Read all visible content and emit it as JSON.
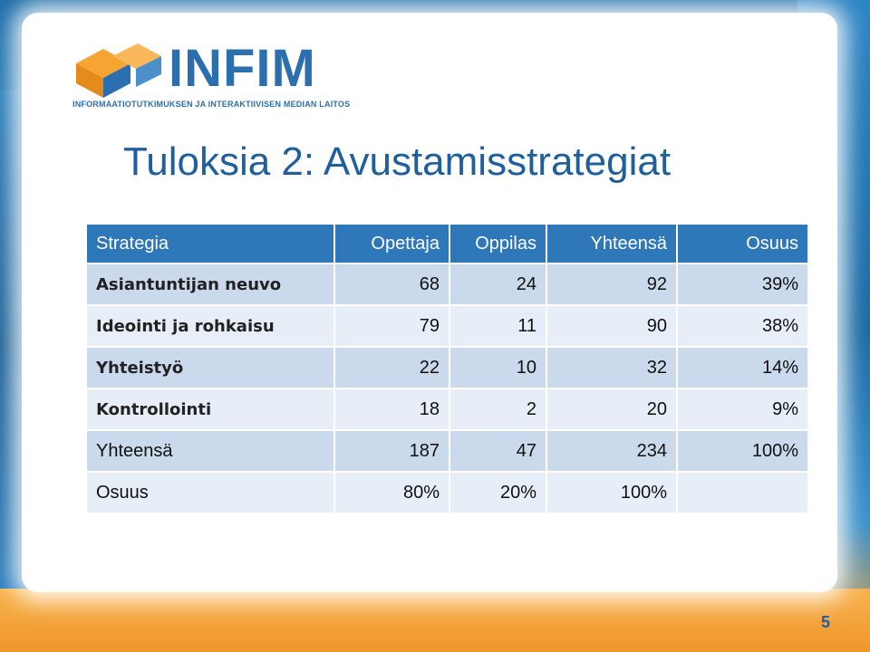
{
  "logo": {
    "name": "INFIM",
    "subtitle": "INFORMAATIOTUTKIMUKSEN JA INTERAKTIIVISEN MEDIAN LAITOS"
  },
  "slide": {
    "title": "Tuloksia 2: Avustamisstrategiat",
    "page_number": "5"
  },
  "table": {
    "headers": [
      "Strategia",
      "Opettaja",
      "Oppilas",
      "Yhteensä",
      "Osuus"
    ],
    "rows": [
      [
        "Asiantuntijan neuvo",
        "68",
        "24",
        "92",
        "39%"
      ],
      [
        "Ideointi ja rohkaisu",
        "79",
        "11",
        "90",
        "38%"
      ],
      [
        "Yhteistyö",
        "22",
        "10",
        "32",
        "14%"
      ],
      [
        "Kontrollointi",
        "18",
        "2",
        "20",
        "9%"
      ],
      [
        "Yhteensä",
        "187",
        "47",
        "234",
        "100%"
      ],
      [
        "Osuus",
        "80%",
        "20%",
        "100%",
        ""
      ]
    ]
  },
  "colors": {
    "header_bg": "#2e77b8",
    "row_dark": "#cbd9ec",
    "row_light": "#e7eef7",
    "title": "#1f5f9e"
  }
}
